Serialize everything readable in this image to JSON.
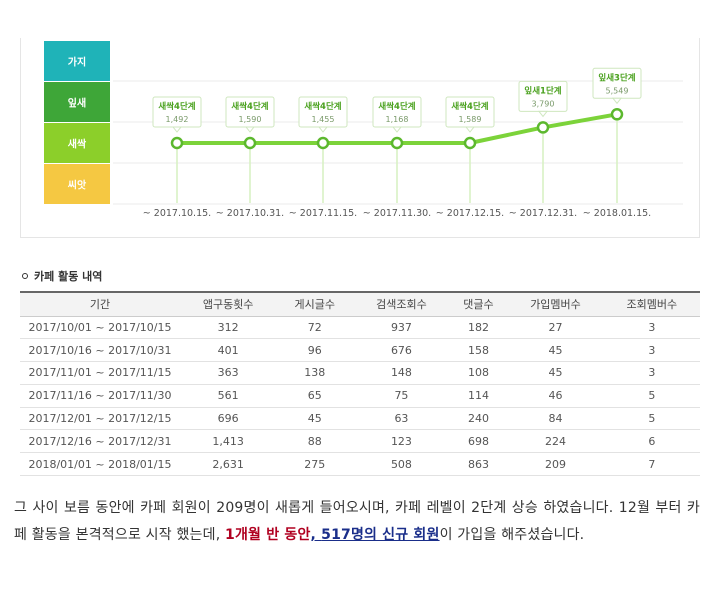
{
  "chart": {
    "levels": [
      {
        "label": "가지",
        "color": "#1fb3b8"
      },
      {
        "label": "잎새",
        "color": "#3ea638"
      },
      {
        "label": "새싹",
        "color": "#8ccf2a"
      },
      {
        "label": "씨앗",
        "color": "#f5c842"
      }
    ],
    "line_color": "#7cd33a"
  },
  "chart_data": {
    "type": "line",
    "x": [
      "~ 2017.10.15.",
      "~ 2017.10.31.",
      "~ 2017.11.15.",
      "~ 2017.11.30.",
      "~ 2017.12.15.",
      "~ 2017.12.31.",
      "~ 2018.01.15."
    ],
    "y_categories": [
      "씨앗",
      "새싹",
      "잎새",
      "가지"
    ],
    "series": [
      {
        "levels": [
          "새싹",
          "새싹",
          "새싹",
          "새싹",
          "새싹",
          "잎새",
          "잎새"
        ],
        "level_position": [
          1.0,
          1.0,
          1.0,
          1.0,
          1.0,
          1.38,
          1.7
        ],
        "grade_labels": [
          "새싹4단계",
          "새싹4단계",
          "새싹4단계",
          "새싹4단계",
          "새싹4단계",
          "잎새1단계",
          "잎새3단계"
        ],
        "scores": [
          "1,492",
          "1,590",
          "1,455",
          "1,168",
          "1,589",
          "3,790",
          "5,549"
        ]
      }
    ]
  },
  "activity": {
    "title": "카페 활동 내역",
    "headers": [
      "기간",
      "앱구동횟수",
      "게시글수",
      "검색조회수",
      "댓글수",
      "가입멤버수",
      "조회멤버수"
    ],
    "rows": [
      [
        "2017/10/01 ~ 2017/10/15",
        "312",
        "72",
        "937",
        "182",
        "27",
        "3"
      ],
      [
        "2017/10/16 ~ 2017/10/31",
        "401",
        "96",
        "676",
        "158",
        "45",
        "3"
      ],
      [
        "2017/11/01 ~ 2017/11/15",
        "363",
        "138",
        "148",
        "108",
        "45",
        "3"
      ],
      [
        "2017/11/16 ~ 2017/11/30",
        "561",
        "65",
        "75",
        "114",
        "46",
        "5"
      ],
      [
        "2017/12/01 ~ 2017/12/15",
        "696",
        "45",
        "63",
        "240",
        "84",
        "5"
      ],
      [
        "2017/12/16 ~ 2017/12/31",
        "1,413",
        "88",
        "123",
        "698",
        "224",
        "6"
      ],
      [
        "2018/01/01 ~ 2018/01/15",
        "2,631",
        "275",
        "508",
        "863",
        "209",
        "7"
      ]
    ]
  },
  "paragraph": {
    "part1": "그 사이 보름 동안에 카페 회원이 209명이 새롭게 들어오시며, 카페 레벨이 2단계 상승 하였습니다. 12월 부터 카페 활동을 본격적으로 시작 했는데, ",
    "highlight1": "1개월 반 동안",
    "comma": ", ",
    "highlight2": "517명의 신규 회원",
    "part2": "이 가입을 해주셨습니다."
  }
}
